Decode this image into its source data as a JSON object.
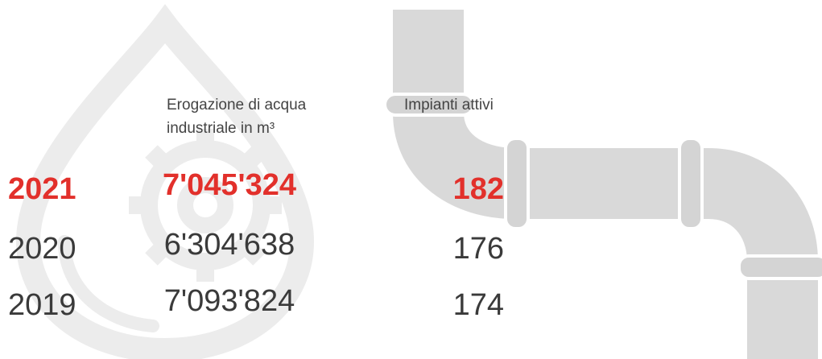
{
  "table": {
    "headers": [
      "Erogazione di acqua industriale in m³",
      "Impianti attivi"
    ],
    "rows": [
      [
        "2021",
        "7'045'324",
        "182"
      ],
      [
        "2020",
        "6'304'638",
        "176"
      ],
      [
        "2019",
        "7'093'824",
        "174"
      ]
    ]
  }
}
